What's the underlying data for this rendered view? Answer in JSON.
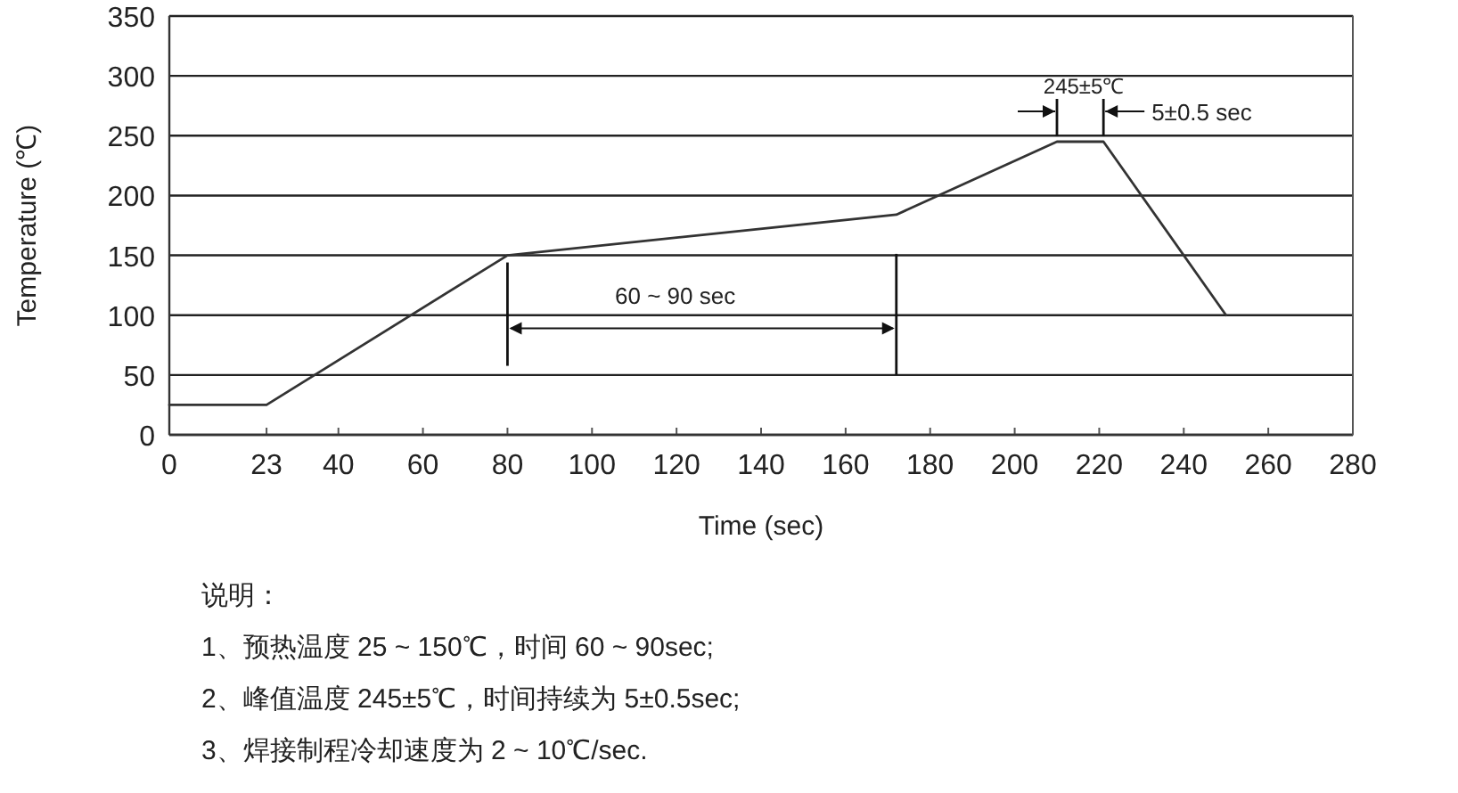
{
  "chart_data": {
    "type": "line",
    "xlabel": "Time (sec)",
    "ylabel": "Temperature (℃)",
    "x": [
      0,
      23,
      80,
      172,
      210,
      221,
      250
    ],
    "series": [
      {
        "color": "#333333",
        "values": [
          25,
          25,
          150,
          184,
          245,
          245,
          100
        ]
      }
    ],
    "xlim": [
      0,
      280
    ],
    "ylim": [
      0,
      350
    ],
    "xticks": [
      0,
      23,
      40,
      60,
      80,
      100,
      120,
      140,
      160,
      180,
      200,
      220,
      240,
      260,
      280
    ],
    "yticks": [
      0,
      50,
      100,
      150,
      200,
      250,
      300,
      350
    ],
    "grid": "y",
    "marker": "none",
    "line_style": "solid",
    "annotations": [
      "60 ~ 90 sec",
      {
        "text": "245±5℃",
        "x": 215.5,
        "y": 245
      },
      "5±0.5 sec",
      "说明：",
      "1、预热温度 25 ~ 150℃，时间 60 ~ 90sec;",
      "2、峰值温度 245±5℃，时间持续为 5±0.5sec;",
      "3、焊接制程冷却速度为 2 ~ 10℃/sec."
    ]
  }
}
